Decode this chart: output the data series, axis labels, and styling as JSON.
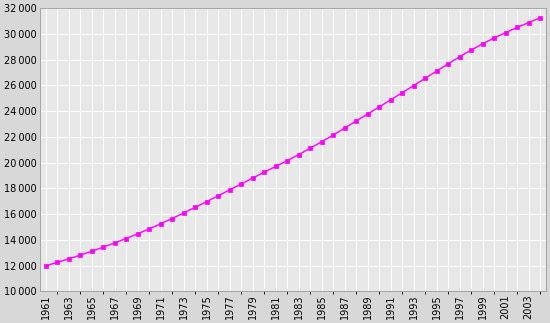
{
  "years": [
    1961,
    1962,
    1963,
    1964,
    1965,
    1966,
    1967,
    1968,
    1969,
    1970,
    1971,
    1972,
    1973,
    1974,
    1975,
    1976,
    1977,
    1978,
    1979,
    1980,
    1981,
    1982,
    1983,
    1984,
    1985,
    1986,
    1987,
    1988,
    1989,
    1990,
    1991,
    1992,
    1993,
    1994,
    1995,
    1996,
    1997,
    1998,
    1999,
    2000,
    2001,
    2002,
    2003,
    2004
  ],
  "population": [
    11979,
    12244,
    12519,
    12807,
    13109,
    13425,
    13756,
    14103,
    14466,
    14845,
    15241,
    15655,
    16085,
    16519,
    16964,
    17419,
    17877,
    18336,
    18793,
    19249,
    19699,
    20148,
    20619,
    21114,
    21615,
    22136,
    22677,
    23226,
    23773,
    24321,
    24873,
    25426,
    25983,
    26547,
    27111,
    27673,
    28224,
    28745,
    29229,
    29678,
    30100,
    30506,
    30876,
    31248
  ],
  "xtick_years": [
    1961,
    1963,
    1965,
    1967,
    1969,
    1971,
    1973,
    1975,
    1977,
    1979,
    1981,
    1983,
    1985,
    1987,
    1989,
    1991,
    1993,
    1995,
    1997,
    1999,
    2001,
    2003
  ],
  "line_color": "#ff00ff",
  "marker": "s",
  "markersize": 3.0,
  "ylim": [
    10000,
    32000
  ],
  "ytick_step": 2000,
  "bg_color": "#d8d8d8",
  "plot_bg_color": "#e8e8e8",
  "grid_color": "#ffffff",
  "xtick_fontsize": 7.0,
  "ytick_fontsize": 7.0
}
